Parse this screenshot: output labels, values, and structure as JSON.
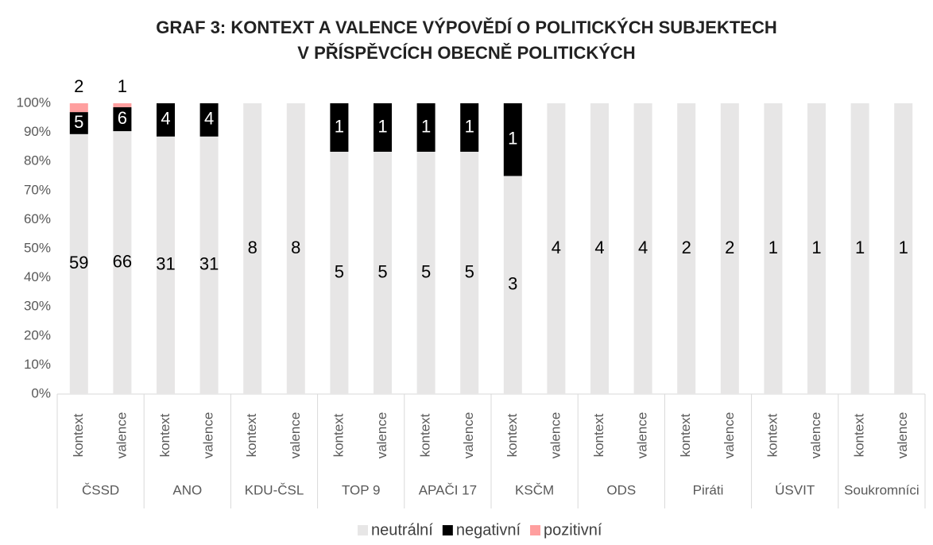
{
  "chart_data": {
    "type": "bar",
    "stacking": "percent",
    "title": [
      "GRAF 3: KONTEXT A VALENCE VÝPOVĚDÍ O POLITICKÝCH SUBJEKTECH",
      "V PŘÍSPĚVCÍCH OBECNĚ POLITICKÝCH"
    ],
    "groups": [
      "ČSSD",
      "ANO",
      "KDU-ČSL",
      "TOP 9",
      "APAČI 17",
      "KSČM",
      "ODS",
      "Piráti",
      "ÚSVIT",
      "Soukromníci"
    ],
    "categories": [
      "kontext",
      "valence",
      "kontext",
      "valence",
      "kontext",
      "valence",
      "kontext",
      "valence",
      "kontext",
      "valence",
      "kontext",
      "valence",
      "kontext",
      "valence",
      "kontext",
      "valence",
      "kontext",
      "valence",
      "kontext",
      "valence"
    ],
    "series": [
      {
        "name": "neutrální",
        "color": "#e7e6e6",
        "label_color": "#000000",
        "values": [
          59,
          66,
          31,
          31,
          8,
          8,
          5,
          5,
          5,
          5,
          3,
          4,
          4,
          4,
          2,
          2,
          1,
          1,
          1,
          1
        ]
      },
      {
        "name": "negativní",
        "color": "#000000",
        "label_color": "#ffffff",
        "values": [
          5,
          6,
          4,
          4,
          null,
          null,
          1,
          1,
          1,
          1,
          1,
          null,
          null,
          null,
          null,
          null,
          null,
          null,
          null,
          null
        ]
      },
      {
        "name": "pozitivní",
        "color": "#ff9f9f",
        "label_color": "#000000",
        "values": [
          2,
          1,
          null,
          null,
          null,
          null,
          null,
          null,
          null,
          null,
          null,
          null,
          null,
          null,
          null,
          null,
          null,
          null,
          null,
          null
        ]
      }
    ],
    "ylim": [
      0,
      100
    ],
    "yticks": [
      {
        "value": 0,
        "label": "0%"
      },
      {
        "value": 10,
        "label": "10%"
      },
      {
        "value": 20,
        "label": "20%"
      },
      {
        "value": 30,
        "label": "30%"
      },
      {
        "value": 40,
        "label": "40%"
      },
      {
        "value": 50,
        "label": "50%"
      },
      {
        "value": 60,
        "label": "60%"
      },
      {
        "value": 70,
        "label": "70%"
      },
      {
        "value": 80,
        "label": "80%"
      },
      {
        "value": 90,
        "label": "90%"
      },
      {
        "value": 100,
        "label": "100%"
      }
    ],
    "legend": "bottom"
  }
}
